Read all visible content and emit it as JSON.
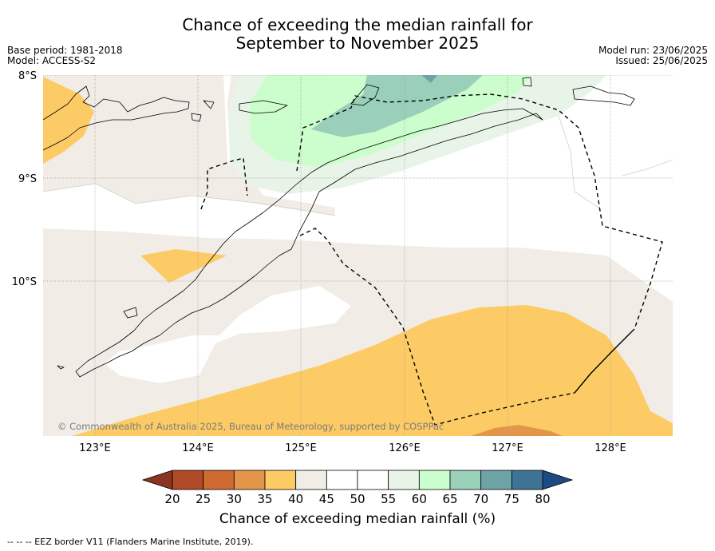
{
  "title": {
    "line1": "Chance of exceeding the median rainfall for",
    "line2": "September to November 2025"
  },
  "meta": {
    "base_period": "Base period: 1981-2018",
    "model": "Model: ACCESS-S2",
    "model_run": "Model run: 23/06/2025",
    "issued": "Issued: 25/06/2025"
  },
  "map": {
    "lat_labels": [
      "8°S",
      "9°S",
      "10°S"
    ],
    "lon_labels": [
      "123°E",
      "124°E",
      "125°E",
      "126°E",
      "127°E",
      "128°E"
    ],
    "copyright": "© Commonwealth of Australia 2025, Bureau of Meteorology, supported by COSPPac"
  },
  "colorbar": {
    "ticks": [
      "20",
      "25",
      "30",
      "35",
      "40",
      "45",
      "50",
      "55",
      "60",
      "65",
      "70",
      "75",
      "80"
    ],
    "colors": [
      "#b04a27",
      "#cf6a33",
      "#e3964a",
      "#fdcb65",
      "#f1ece6",
      "#ffffff",
      "#ffffff",
      "#e9f4e8",
      "#ccfdcc",
      "#9acfba",
      "#6da5a6",
      "#3e7394"
    ],
    "under_color": "#8a3522",
    "over_color": "#1d4a80",
    "title": "Chance of exceeding median rainfall (%)"
  },
  "footnote": "--  --  -- EEZ border V11 (Flanders Marine Institute, 2019)."
}
